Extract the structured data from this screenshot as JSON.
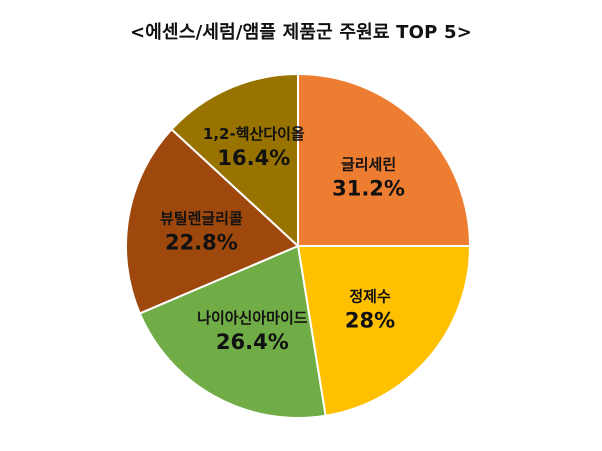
{
  "chart_data": {
    "type": "pie",
    "title": "<에센스/세럼/앰플 제품군 주원료 TOP 5>",
    "start_angle_deg": 0,
    "direction": "clockwise",
    "slices": [
      {
        "label": "글리세린",
        "value": 31.2,
        "value_text": "31.2%",
        "color": "#ED7D31"
      },
      {
        "label": "정제수",
        "value": 28,
        "value_text": "28%",
        "color": "#FFC000"
      },
      {
        "label": "나이아신아마이드",
        "value": 26.4,
        "value_text": "26.4%",
        "color": "#70AD47"
      },
      {
        "label": "뷰틸렌글리콜",
        "value": 22.8,
        "value_text": "22.8%",
        "color": "#9E480E"
      },
      {
        "label": "1,2-헥산다이올",
        "value": 16.4,
        "value_text": "16.4%",
        "color": "#997300"
      }
    ],
    "legend": "none",
    "data_labels": "inside"
  }
}
